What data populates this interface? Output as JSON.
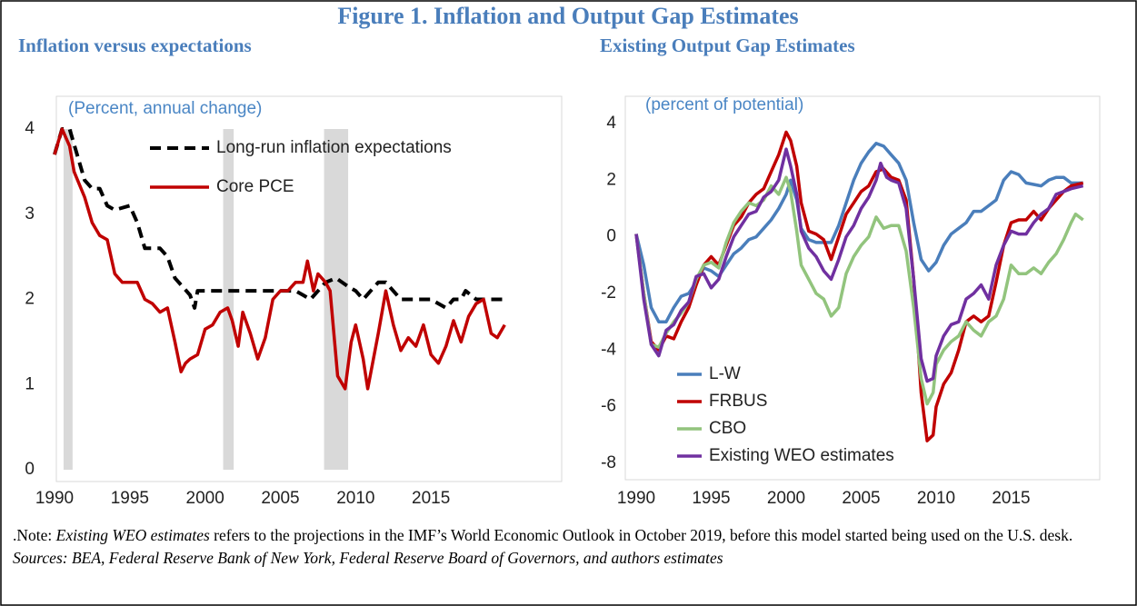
{
  "figure_title": "Figure 1. Inflation and Output Gap Estimates",
  "chart_data": [
    {
      "type": "line",
      "title": "Inflation versus expectations",
      "y_label": "(Percent, annual change)",
      "xlim": [
        1990,
        2020
      ],
      "ylim": [
        0,
        4
      ],
      "xticks": [
        1990,
        1995,
        2000,
        2005,
        2010,
        2015
      ],
      "yticks": [
        0,
        1,
        2,
        3,
        4
      ],
      "recessions": [
        [
          1990.6,
          1991.2
        ],
        [
          2001.2,
          2001.9
        ],
        [
          2007.9,
          2009.5
        ]
      ],
      "recession_color": "#d9d9d9",
      "series": [
        {
          "name": "Long-run inflation expectations",
          "color": "#000000",
          "dashed": true,
          "x": [
            1990,
            1990.5,
            1991,
            1991.5,
            1992,
            1992.5,
            1993,
            1993.5,
            1994,
            1995,
            1995.5,
            1996,
            1997,
            1997.5,
            1998,
            1998.5,
            1999,
            1999.3,
            1999.5,
            2001,
            2003,
            2005,
            2006,
            2006.5,
            2007,
            2008,
            2008.7,
            2009.5,
            2010,
            2010.5,
            2011,
            2011.5,
            2012,
            2013,
            2015,
            2016,
            2016.5,
            2017,
            2017.3,
            2018,
            2019.9
          ],
          "values": [
            3.7,
            4.0,
            4.0,
            3.7,
            3.4,
            3.3,
            3.3,
            3.1,
            3.05,
            3.1,
            2.9,
            2.6,
            2.6,
            2.5,
            2.25,
            2.15,
            2.05,
            1.9,
            2.1,
            2.1,
            2.1,
            2.1,
            2.1,
            2.05,
            2.0,
            2.2,
            2.25,
            2.15,
            2.1,
            2.0,
            2.1,
            2.2,
            2.2,
            2.0,
            2.0,
            1.9,
            2.0,
            2.0,
            2.1,
            2.0,
            2.0
          ]
        },
        {
          "name": "Core PCE",
          "color": "#c00000",
          "dashed": false,
          "x": [
            1990,
            1990.5,
            1991,
            1991.3,
            1992,
            1992.5,
            1993,
            1993.5,
            1994,
            1994.5,
            1995,
            1995.5,
            1996,
            1996.5,
            1997,
            1997.5,
            1998,
            1998.4,
            1998.7,
            1999,
            1999.5,
            2000,
            2000.5,
            2001,
            2001.5,
            2001.8,
            2002.2,
            2002.5,
            2003,
            2003.5,
            2004,
            2004.5,
            2005,
            2005.5,
            2006,
            2006.5,
            2006.8,
            2007.2,
            2007.5,
            2008,
            2008.3,
            2008.8,
            2009.3,
            2009.7,
            2010,
            2010.5,
            2010.8,
            2011.5,
            2012,
            2012.5,
            2013,
            2013.5,
            2014,
            2014.5,
            2015,
            2015.5,
            2016,
            2016.5,
            2017,
            2017.5,
            2018,
            2018.5,
            2019,
            2019.4,
            2019.9
          ],
          "values": [
            3.7,
            4.0,
            3.8,
            3.5,
            3.2,
            2.9,
            2.75,
            2.7,
            2.3,
            2.2,
            2.2,
            2.2,
            2.0,
            1.95,
            1.85,
            1.9,
            1.5,
            1.15,
            1.25,
            1.3,
            1.35,
            1.65,
            1.7,
            1.85,
            1.9,
            1.75,
            1.45,
            1.85,
            1.6,
            1.3,
            1.55,
            2.0,
            2.1,
            2.1,
            2.2,
            2.2,
            2.45,
            2.1,
            2.3,
            2.2,
            2.1,
            1.1,
            0.95,
            1.5,
            1.7,
            1.3,
            0.95,
            1.6,
            2.1,
            1.7,
            1.4,
            1.55,
            1.45,
            1.7,
            1.35,
            1.25,
            1.45,
            1.75,
            1.5,
            1.8,
            1.95,
            2.0,
            1.6,
            1.55,
            1.7
          ]
        }
      ]
    },
    {
      "type": "line",
      "title": "Existing Output Gap Estimates",
      "y_label": "(percent of potential)",
      "xlim": [
        1990,
        2020
      ],
      "ylim": [
        -8,
        4
      ],
      "xticks": [
        1990,
        1995,
        2000,
        2005,
        2010,
        2015
      ],
      "yticks": [
        -8,
        -6,
        -4,
        -2,
        0,
        2,
        4
      ],
      "series": [
        {
          "name": "L-W",
          "color": "#4a7ebb",
          "dashed": false,
          "x": [
            1990,
            1990.5,
            1991,
            1991.5,
            1992,
            1992.5,
            1993,
            1993.5,
            1994,
            1994.5,
            1995,
            1995.5,
            1996,
            1996.5,
            1997,
            1997.5,
            1998,
            1998.5,
            1999,
            1999.5,
            2000,
            2000.3,
            2000.7,
            2001,
            2001.5,
            2002,
            2003,
            2003.5,
            2004,
            2004.5,
            2005,
            2005.5,
            2006,
            2006.5,
            2007,
            2007.5,
            2008,
            2008.5,
            2009,
            2009.5,
            2010,
            2010.5,
            2011,
            2011.5,
            2012,
            2012.5,
            2013,
            2013.5,
            2014,
            2014.5,
            2015,
            2015.5,
            2016,
            2017,
            2017.5,
            2018,
            2018.5,
            2019,
            2019.8
          ],
          "values": [
            0.1,
            -1.0,
            -2.5,
            -3.0,
            -3.0,
            -2.5,
            -2.1,
            -2.0,
            -1.6,
            -1.1,
            -1.2,
            -1.4,
            -1.0,
            -0.6,
            -0.4,
            -0.1,
            0.0,
            0.3,
            0.6,
            1.0,
            1.5,
            2.0,
            1.3,
            0.3,
            -0.1,
            -0.2,
            -0.2,
            0.4,
            1.2,
            2.0,
            2.6,
            3.0,
            3.3,
            3.2,
            2.9,
            2.6,
            2.0,
            0.5,
            -0.8,
            -1.2,
            -0.9,
            -0.3,
            0.1,
            0.3,
            0.5,
            0.9,
            0.9,
            1.1,
            1.3,
            2.0,
            2.3,
            2.2,
            1.9,
            1.8,
            2.0,
            2.1,
            2.1,
            1.9,
            1.9
          ]
        },
        {
          "name": "FRBUS",
          "color": "#c00000",
          "dashed": false,
          "x": [
            1990,
            1990.5,
            1991,
            1991.5,
            1992,
            1992.5,
            1993,
            1993.5,
            1994,
            1994.5,
            1995,
            1995.5,
            1996,
            1996.5,
            1997,
            1997.5,
            1998,
            1998.5,
            1999,
            1999.5,
            2000,
            2000.3,
            2000.7,
            2001,
            2001.5,
            2002,
            2002.5,
            2003,
            2003.5,
            2004,
            2004.5,
            2005,
            2005.5,
            2006,
            2006.5,
            2007,
            2007.5,
            2008,
            2008.5,
            2009,
            2009.4,
            2009.8,
            2010,
            2010.5,
            2011,
            2011.5,
            2012,
            2012.5,
            2013,
            2013.5,
            2014,
            2014.5,
            2015,
            2015.5,
            2016,
            2016.5,
            2017,
            2017.5,
            2018,
            2018.5,
            2019,
            2019.8
          ],
          "values": [
            0.1,
            -2.0,
            -3.7,
            -4.0,
            -3.5,
            -3.6,
            -3.0,
            -2.5,
            -1.7,
            -1.0,
            -0.7,
            -1.0,
            -0.3,
            0.4,
            0.7,
            1.2,
            1.5,
            1.7,
            2.3,
            2.9,
            3.7,
            3.4,
            2.5,
            1.2,
            0.2,
            0.1,
            -0.1,
            -0.8,
            0.0,
            0.8,
            1.2,
            1.6,
            1.8,
            2.3,
            2.4,
            2.1,
            2.0,
            1.3,
            -1.5,
            -5.5,
            -7.2,
            -7.0,
            -6.0,
            -5.2,
            -4.8,
            -4.0,
            -3.0,
            -2.8,
            -3.0,
            -2.8,
            -1.6,
            -0.3,
            0.5,
            0.6,
            0.6,
            0.9,
            0.6,
            1.0,
            1.3,
            1.6,
            1.8,
            1.9
          ]
        },
        {
          "name": "CBO",
          "color": "#92c47d",
          "dashed": false,
          "x": [
            1990,
            1990.5,
            1991,
            1991.5,
            1992,
            1992.5,
            1993,
            1993.5,
            1994,
            1994.5,
            1995,
            1995.5,
            1996,
            1996.5,
            1997,
            1997.5,
            1998,
            1998.5,
            1999,
            1999.5,
            2000,
            2000.3,
            2000.7,
            2001,
            2001.5,
            2002,
            2002.5,
            2003,
            2003.5,
            2004,
            2004.5,
            2005,
            2005.5,
            2006,
            2006.5,
            2007,
            2007.5,
            2008,
            2008.5,
            2009,
            2009.4,
            2009.8,
            2010,
            2010.5,
            2011,
            2011.5,
            2012,
            2012.5,
            2013,
            2013.5,
            2014,
            2014.5,
            2015,
            2015.5,
            2016,
            2016.5,
            2017,
            2017.5,
            2018,
            2018.5,
            2019,
            2019.3,
            2019.8
          ],
          "values": [
            0.1,
            -2.0,
            -3.8,
            -3.9,
            -3.4,
            -3.0,
            -2.7,
            -2.3,
            -1.5,
            -1.0,
            -0.9,
            -1.1,
            -0.2,
            0.5,
            0.9,
            1.2,
            1.1,
            1.3,
            1.8,
            1.5,
            2.1,
            1.6,
            0.2,
            -1.0,
            -1.5,
            -2.0,
            -2.2,
            -2.8,
            -2.5,
            -1.3,
            -0.7,
            -0.3,
            0.0,
            0.7,
            0.3,
            0.4,
            0.4,
            -0.5,
            -2.5,
            -5.0,
            -5.9,
            -5.5,
            -4.5,
            -4.0,
            -3.7,
            -3.5,
            -3.0,
            -3.3,
            -3.5,
            -3.0,
            -2.8,
            -2.2,
            -1.0,
            -1.3,
            -1.3,
            -1.1,
            -1.3,
            -0.9,
            -0.6,
            -0.1,
            0.5,
            0.8,
            0.6
          ]
        },
        {
          "name": "Existing WEO estimates",
          "color": "#7030a0",
          "dashed": false,
          "x": [
            1990,
            1990.5,
            1991,
            1991.5,
            1992,
            1992.5,
            1993,
            1993.5,
            1994,
            1994.5,
            1995,
            1995.5,
            1996,
            1996.5,
            1997,
            1997.5,
            1998,
            1998.5,
            1999,
            1999.5,
            2000,
            2000.3,
            2000.7,
            2001,
            2001.5,
            2002,
            2002.5,
            2003,
            2003.5,
            2004,
            2004.5,
            2005,
            2005.5,
            2006,
            2006.3,
            2006.7,
            2007,
            2007.5,
            2008,
            2008.5,
            2009,
            2009.4,
            2009.8,
            2010,
            2010.5,
            2011,
            2011.5,
            2012,
            2012.5,
            2013,
            2013.5,
            2014,
            2014.5,
            2015,
            2015.5,
            2016,
            2016.5,
            2017,
            2017.5,
            2018,
            2018.5,
            2019,
            2019.8
          ],
          "values": [
            0.1,
            -2.2,
            -3.8,
            -4.2,
            -3.3,
            -3.1,
            -2.6,
            -2.3,
            -1.4,
            -1.3,
            -1.8,
            -1.5,
            -0.7,
            0.0,
            0.4,
            0.8,
            0.9,
            1.4,
            1.6,
            2.0,
            3.1,
            2.5,
            1.5,
            0.2,
            -0.4,
            -0.7,
            -1.2,
            -1.5,
            -0.8,
            0.0,
            0.4,
            1.0,
            1.4,
            2.0,
            2.6,
            2.1,
            2.0,
            1.9,
            1.0,
            -1.5,
            -4.3,
            -5.1,
            -5.0,
            -4.2,
            -3.5,
            -3.1,
            -3.0,
            -2.2,
            -2.0,
            -1.7,
            -2.2,
            -1.0,
            -0.3,
            0.2,
            0.1,
            0.1,
            0.5,
            0.8,
            1.0,
            1.5,
            1.6,
            1.7,
            1.8
          ]
        }
      ]
    }
  ],
  "note": [
    {
      "text": ".Note: ",
      "italic": false
    },
    {
      "text": "Existing WEO estimates",
      "italic": true
    },
    {
      "text": " refers to the projections in the IMF’s World Economic Outlook in October 2019, before this model started being used on the U.S. desk.  ",
      "italic": false
    },
    {
      "text": "Sources:  BEA, Federal Reserve Bank of New York, Federal Reserve Board of Governors, and authors estimates",
      "italic": true
    }
  ]
}
